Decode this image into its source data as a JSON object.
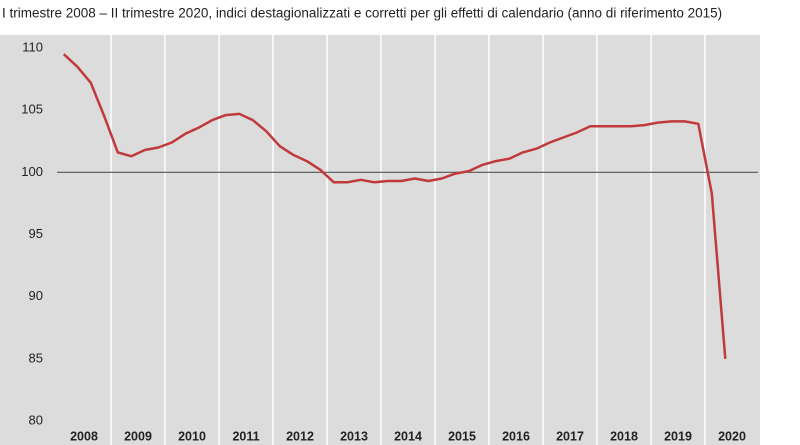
{
  "chart_data": {
    "type": "line",
    "subtitle": "I trimestre 2008 – II trimestre 2020, indici destagionalizzati e corretti per gli effetti di calendario (anno di riferimento 2015)",
    "year_labels": [
      "2008",
      "2009",
      "2010",
      "2011",
      "2012",
      "2013",
      "2014",
      "2015",
      "2016",
      "2017",
      "2018",
      "2019",
      "2020"
    ],
    "values": [
      109.5,
      108.5,
      107.2,
      104.5,
      101.6,
      101.3,
      101.8,
      102.0,
      102.4,
      103.1,
      103.6,
      104.2,
      104.6,
      104.7,
      104.2,
      103.3,
      102.1,
      101.4,
      100.9,
      100.2,
      99.2,
      99.2,
      99.4,
      99.2,
      99.3,
      99.3,
      99.5,
      99.3,
      99.5,
      99.9,
      100.1,
      100.6,
      100.9,
      101.1,
      101.6,
      101.9,
      102.4,
      102.8,
      103.2,
      103.7,
      103.7,
      103.7,
      103.7,
      103.8,
      104.0,
      104.1,
      104.1,
      103.9,
      98.3,
      85.0
    ],
    "color": "#c0393b",
    "ylim": [
      80,
      110
    ],
    "yticks": [
      80,
      85,
      90,
      95,
      100,
      105,
      110
    ],
    "reference_line": 100
  }
}
